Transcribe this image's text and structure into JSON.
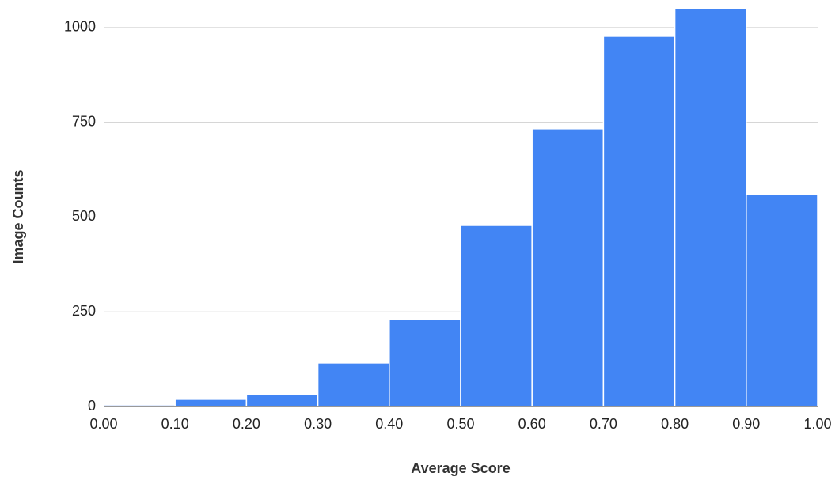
{
  "chart_data": {
    "type": "histogram",
    "x_label": "Average Score",
    "y_label": "Image Counts",
    "bins": [
      0,
      0.1,
      0.2,
      0.3,
      0.4,
      0.5,
      0.6,
      0.7,
      0.8,
      0.9,
      1.0
    ],
    "values": [
      4,
      19,
      31,
      115,
      230,
      478,
      733,
      977,
      1050,
      560
    ],
    "color": "#4285f4",
    "xlim": [
      0,
      1.0
    ],
    "xticks": [
      {
        "value": 0,
        "label": "0.00"
      },
      {
        "value": 0.1,
        "label": "0.10"
      },
      {
        "value": 0.2,
        "label": "0.20"
      },
      {
        "value": 0.3,
        "label": "0.30"
      },
      {
        "value": 0.4,
        "label": "0.40"
      },
      {
        "value": 0.5,
        "label": "0.50"
      },
      {
        "value": 0.6,
        "label": "0.60"
      },
      {
        "value": 0.7,
        "label": "0.70"
      },
      {
        "value": 0.8,
        "label": "0.80"
      },
      {
        "value": 0.9,
        "label": "0.90"
      },
      {
        "value": 1.0,
        "label": "1.00"
      }
    ],
    "ylim": [
      0,
      1052
    ],
    "yticks": [
      0,
      250,
      500,
      750,
      1000
    ],
    "grid": true
  }
}
